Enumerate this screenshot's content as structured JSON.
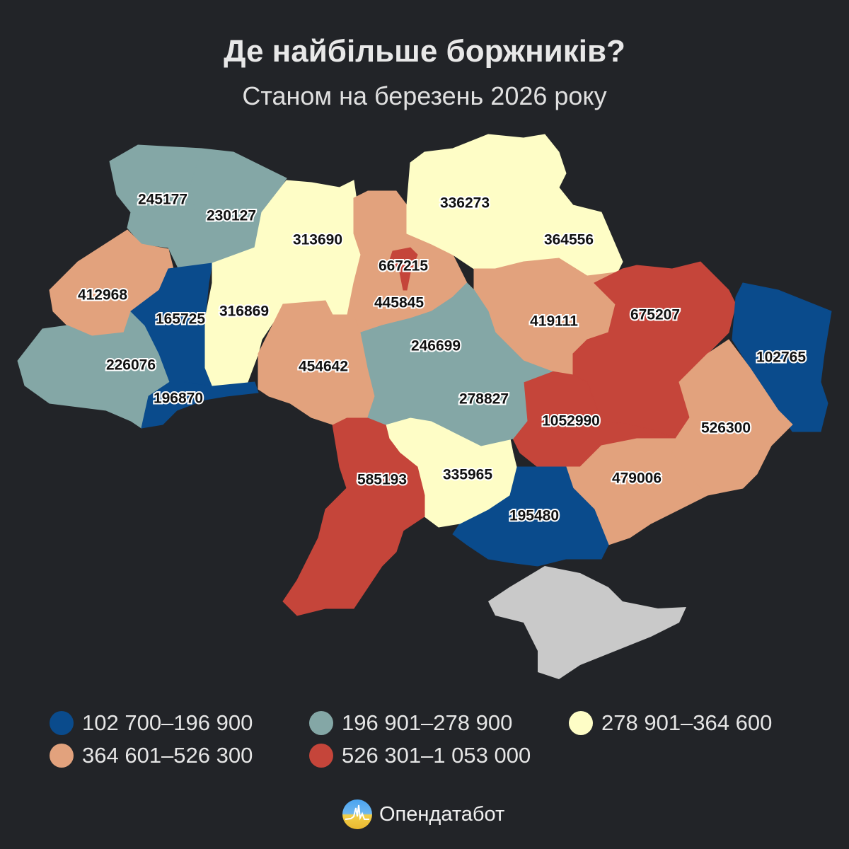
{
  "title": "Де найбільше боржників?",
  "subtitle": "Станом на березень 2026 року",
  "colors": {
    "background": "#222428",
    "c1": "#0a4b8c",
    "c2": "#84a7a6",
    "c3": "#fefdc6",
    "c4": "#e2a27d",
    "c5": "#c5453a",
    "occupied": "#c9c9c9"
  },
  "regions": [
    {
      "value": "245177",
      "class": "c2"
    },
    {
      "value": "230127",
      "class": "c2"
    },
    {
      "value": "412968",
      "class": "c4"
    },
    {
      "value": "226076",
      "class": "c2"
    },
    {
      "value": "165725",
      "class": "c1"
    },
    {
      "value": "196870",
      "class": "c1"
    },
    {
      "value": "313690",
      "class": "c3"
    },
    {
      "value": "316869",
      "class": "c3"
    },
    {
      "value": "445845",
      "class": "c4"
    },
    {
      "value": "667215",
      "class": "c5"
    },
    {
      "value": "336273",
      "class": "c3"
    },
    {
      "value": "364556",
      "class": "c3"
    },
    {
      "value": "419111",
      "class": "c4"
    },
    {
      "value": "675207",
      "class": "c5"
    },
    {
      "value": "102765",
      "class": "c1"
    },
    {
      "value": "454642",
      "class": "c4"
    },
    {
      "value": "246699",
      "class": "c2"
    },
    {
      "value": "278827",
      "class": "c2"
    },
    {
      "value": "1052990",
      "class": "c5"
    },
    {
      "value": "526300",
      "class": "c4"
    },
    {
      "value": "585193",
      "class": "c5"
    },
    {
      "value": "335965",
      "class": "c3"
    },
    {
      "value": "479006",
      "class": "c4"
    },
    {
      "value": "195480",
      "class": "c1"
    }
  ],
  "legend": [
    {
      "label": "102 700–196 900",
      "color": "#0a4b8c"
    },
    {
      "label": "196 901–278 900",
      "color": "#84a7a6"
    },
    {
      "label": "278 901–364 600",
      "color": "#fefdc6"
    },
    {
      "label": "364 601–526 300",
      "color": "#e2a27d"
    },
    {
      "label": "526 301–1 053 000",
      "color": "#c5453a"
    }
  ],
  "logo": {
    "text": "Опендатабот",
    "icon": "opendatabot-logo-icon"
  }
}
